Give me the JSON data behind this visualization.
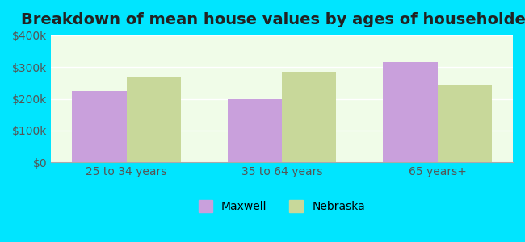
{
  "title": "Breakdown of mean house values by ages of householders",
  "categories": [
    "25 to 34 years",
    "35 to 64 years",
    "65 years+"
  ],
  "maxwell_values": [
    225000,
    200000,
    315000
  ],
  "nebraska_values": [
    270000,
    285000,
    245000
  ],
  "maxwell_color": "#c9a0dc",
  "nebraska_color": "#c8d89a",
  "background_outer": "#00e5ff",
  "background_inner": "#f0fce8",
  "ylim": [
    0,
    400000
  ],
  "yticks": [
    0,
    100000,
    200000,
    300000,
    400000
  ],
  "ytick_labels": [
    "$0",
    "$100k",
    "$200k",
    "$300k",
    "$400k"
  ],
  "legend_labels": [
    "Maxwell",
    "Nebraska"
  ],
  "bar_width": 0.35,
  "title_fontsize": 14,
  "tick_fontsize": 10,
  "legend_fontsize": 10
}
